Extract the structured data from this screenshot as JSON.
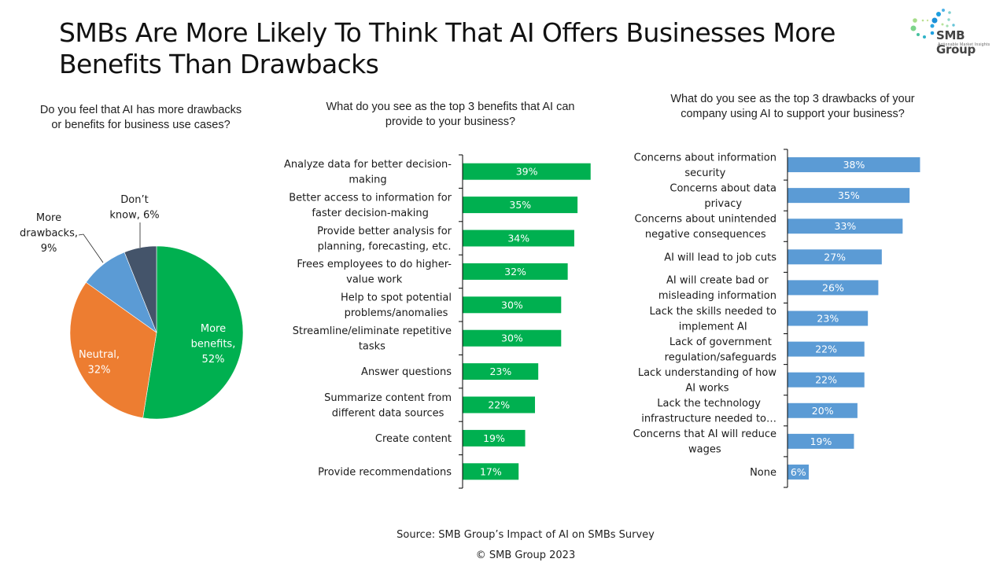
{
  "slide": {
    "title": "SMBs Are More Likely To Think That AI Offers Businesses More Benefits Than Drawbacks",
    "footer_source": "Source: SMB Group’s Impact of AI on SMBs Survey",
    "footer_copyright": "© SMB Group  2023"
  },
  "logo": {
    "name": "SMB Group",
    "tagline": "Actionable Market Insights",
    "icon": "dots-swirl-icon"
  },
  "colors": {
    "benefits_bar": "#00B050",
    "drawbacks_bar": "#5B9BD5",
    "more_benefits": "#00B050",
    "neutral": "#ED7D31",
    "more_drawbacks": "#5B9BD5",
    "dont_know": "#44546A"
  },
  "chart_data": [
    {
      "type": "pie",
      "title": "Do you feel that AI has more drawbacks or benefits for business use cases?",
      "title_lines": [
        "Do you feel that AI has more drawbacks",
        "or benefits for business use cases?"
      ],
      "slices": [
        {
          "name": "More benefits",
          "value": 52,
          "label_lines": [
            "More",
            "benefits,",
            "52%"
          ],
          "color": "#00B050",
          "label_position": "inside"
        },
        {
          "name": "Neutral",
          "value": 32,
          "label_lines": [
            "Neutral,",
            "32%"
          ],
          "color": "#ED7D31",
          "label_position": "inside"
        },
        {
          "name": "More drawbacks",
          "value": 9,
          "label_lines": [
            "More",
            "drawbacks,",
            "9%"
          ],
          "color": "#5B9BD5",
          "label_position": "outside"
        },
        {
          "name": "Don’t know",
          "value": 6,
          "label_lines": [
            "Don’t",
            "know, 6%"
          ],
          "color": "#44546A",
          "label_position": "outside"
        }
      ],
      "start_angle": "12 o'clock",
      "direction": "clockwise"
    },
    {
      "type": "bar",
      "orientation": "horizontal",
      "title": "What do you see as the top 3 benefits that AI can provide to your business?",
      "title_lines": [
        "What do you see as the top 3 benefits that AI can",
        "provide to your business?"
      ],
      "categories": [
        [
          "Analyze data for better decision-",
          "making"
        ],
        [
          "Better access to information for",
          "faster decision-making"
        ],
        [
          "Provide better analysis for",
          "planning, forecasting, etc."
        ],
        [
          "Frees employees to do higher-",
          "value work"
        ],
        [
          "Help to spot potential",
          "problems/anomalies"
        ],
        [
          "Streamline/eliminate repetitive",
          "tasks"
        ],
        [
          "Answer questions"
        ],
        [
          "Summarize content from",
          "different data sources"
        ],
        [
          "Create content"
        ],
        [
          "Provide recommendations"
        ]
      ],
      "values": [
        39,
        35,
        34,
        32,
        30,
        30,
        23,
        22,
        19,
        17
      ],
      "value_labels": [
        "39%",
        "35%",
        "34%",
        "32%",
        "30%",
        "30%",
        "23%",
        "22%",
        "19%",
        "17%"
      ],
      "unit": "%",
      "xlim": [
        0,
        40
      ],
      "grid": false,
      "color": "#00B050"
    },
    {
      "type": "bar",
      "orientation": "horizontal",
      "title": "What do you see as the top 3 drawbacks of your company using AI to support your business?",
      "title_lines": [
        "What do you see as the top 3 drawbacks of your",
        "company using AI to support your business?"
      ],
      "categories": [
        [
          "Concerns about information",
          "security"
        ],
        [
          "Concerns about data",
          "privacy"
        ],
        [
          "Concerns about unintended",
          "negative consequences"
        ],
        [
          "AI will lead to job cuts"
        ],
        [
          "AI will create bad or",
          "misleading information"
        ],
        [
          "Lack the skills needed to",
          "implement AI"
        ],
        [
          "Lack of government",
          "regulation/safeguards"
        ],
        [
          "Lack understanding of how",
          "AI works"
        ],
        [
          "Lack the technology",
          "infrastructure needed to…"
        ],
        [
          "Concerns that AI will reduce",
          "wages"
        ],
        [
          "None"
        ]
      ],
      "values": [
        38,
        35,
        33,
        27,
        26,
        23,
        22,
        22,
        20,
        19,
        6
      ],
      "value_labels": [
        "38%",
        "35%",
        "33%",
        "27%",
        "26%",
        "23%",
        "22%",
        "22%",
        "20%",
        "19%",
        "6%"
      ],
      "unit": "%",
      "xlim": [
        0,
        40
      ],
      "grid": false,
      "color": "#5B9BD5"
    }
  ]
}
